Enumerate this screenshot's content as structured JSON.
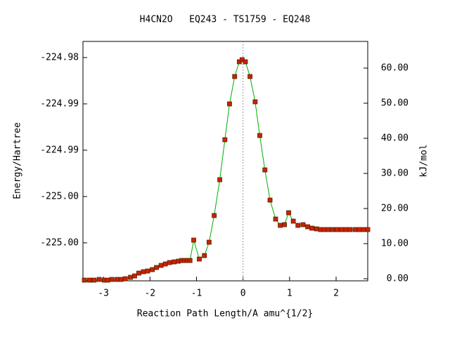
{
  "chart_data": {
    "type": "scatter-line",
    "title": "H4CN2O   EQ243 - TS1759 - EQ248",
    "x_label": "Reaction Path Length/A amu^{1/2}",
    "y_label": "Energy/Hartree",
    "y2_label": "kJ/mol",
    "xlim": [
      -3.44,
      2.68
    ],
    "xticks": [
      -3,
      -2,
      -1,
      0,
      1,
      2
    ],
    "ylim": [
      -225.0041,
      -224.97826
    ],
    "yticks": [
      {
        "value": -224.98,
        "label": "-224.98"
      },
      {
        "value": -224.985,
        "label": "-224.99"
      },
      {
        "value": -224.99,
        "label": "-224.99"
      },
      {
        "value": -224.995,
        "label": "-225.00"
      },
      {
        "value": -225.0,
        "label": "-225.00"
      }
    ],
    "y2lim": [
      -0.6,
      67.6
    ],
    "y2ticks": [
      {
        "value": 0,
        "label": "0.00"
      },
      {
        "value": 10,
        "label": "10.00"
      },
      {
        "value": 20,
        "label": "20.00"
      },
      {
        "value": 30,
        "label": "30.00"
      },
      {
        "value": 40,
        "label": "40.00"
      },
      {
        "value": 50,
        "label": "50.00"
      },
      {
        "value": 60,
        "label": "60.00"
      }
    ],
    "vline_x": 0,
    "line_color": "#00b000",
    "vline_color": "#999999",
    "series": [
      {
        "axis": "y2",
        "color": "#cc2200",
        "x": [
          -3.41,
          -3.3,
          -3.2,
          -3.09,
          -2.98,
          -2.91,
          -2.82,
          -2.71,
          -2.62,
          -2.53,
          -2.42,
          -2.33,
          -2.24,
          -2.14,
          -2.05,
          -1.95,
          -1.86,
          -1.76,
          -1.67,
          -1.58,
          -1.48,
          -1.39,
          -1.32,
          -1.26,
          -1.2,
          -1.14,
          -1.06,
          -0.94,
          -0.83,
          -0.73,
          -0.62,
          -0.5,
          -0.39,
          -0.29,
          -0.18,
          -0.08,
          -0.02,
          0.05,
          0.15,
          0.26,
          0.36,
          0.47,
          0.58,
          0.7,
          0.8,
          0.89,
          0.98,
          1.08,
          1.18,
          1.29,
          1.39,
          1.48,
          1.58,
          1.67,
          1.74,
          1.83,
          1.92,
          2.02,
          2.12,
          2.21,
          2.3,
          2.41,
          2.5,
          2.59,
          2.68
        ],
        "values": [
          -0.4,
          -0.4,
          -0.4,
          -0.2,
          -0.4,
          -0.4,
          -0.2,
          -0.2,
          -0.2,
          0,
          0.4,
          0.8,
          1.6,
          2.0,
          2.2,
          2.6,
          3.2,
          3.8,
          4.2,
          4.6,
          4.8,
          5.0,
          5.2,
          5.2,
          5.2,
          5.2,
          11.0,
          5.6,
          6.6,
          10.4,
          18.0,
          28.2,
          39.6,
          49.8,
          57.6,
          61.8,
          62.4,
          61.8,
          57.6,
          50.4,
          40.8,
          31.0,
          22.4,
          17.0,
          15.2,
          15.4,
          18.8,
          16.4,
          15.2,
          15.4,
          14.8,
          14.4,
          14.2,
          14.0,
          14.0,
          14.0,
          14.0,
          14.0,
          14.0,
          14.0,
          14.0,
          14.0,
          14.0,
          14.0,
          14.0
        ]
      }
    ]
  }
}
